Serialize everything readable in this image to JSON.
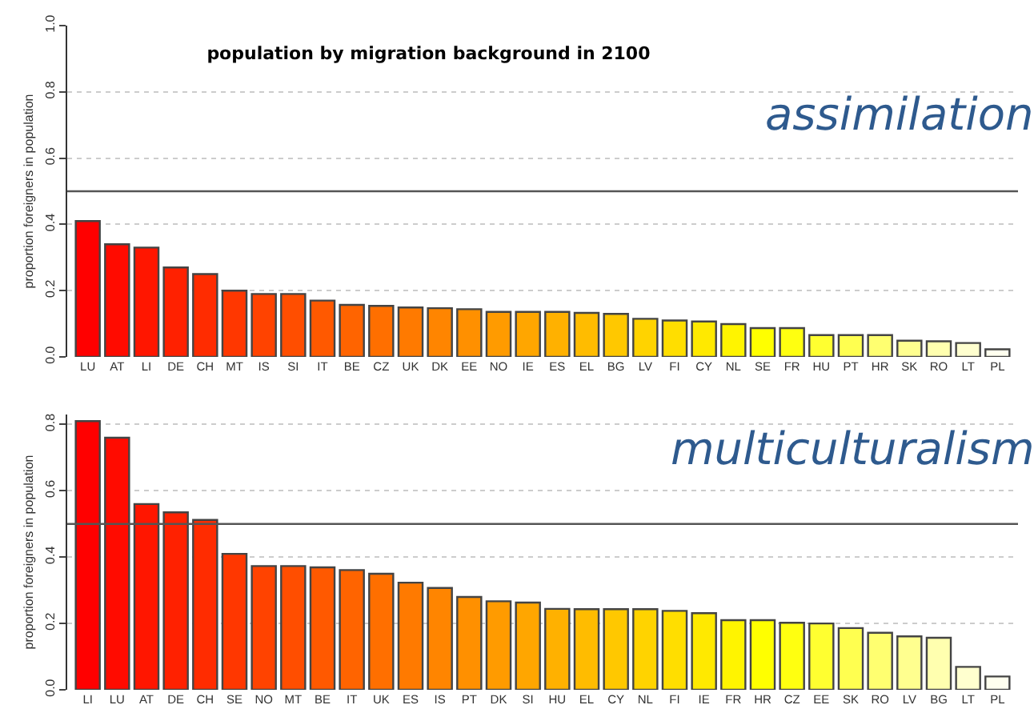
{
  "chart_data": [
    {
      "type": "bar",
      "title": "population by migration background in 2100",
      "ylabel": "proportion foreigners in population",
      "annotations": [
        "assimilation"
      ],
      "categories": [
        "LU",
        "AT",
        "LI",
        "DE",
        "CH",
        "MT",
        "IS",
        "SI",
        "IT",
        "BE",
        "CZ",
        "UK",
        "DK",
        "EE",
        "NO",
        "IE",
        "ES",
        "EL",
        "BG",
        "LV",
        "FI",
        "CY",
        "NL",
        "SE",
        "FR",
        "HU",
        "PT",
        "HR",
        "SK",
        "RO",
        "LT",
        "PL"
      ],
      "values": [
        0.41,
        0.34,
        0.33,
        0.27,
        0.25,
        0.2,
        0.19,
        0.19,
        0.17,
        0.157,
        0.154,
        0.149,
        0.147,
        0.144,
        0.136,
        0.136,
        0.136,
        0.133,
        0.13,
        0.115,
        0.11,
        0.107,
        0.099,
        0.087,
        0.087,
        0.066,
        0.066,
        0.066,
        0.049,
        0.047,
        0.042,
        0.023
      ],
      "colors": [
        "#ff0000",
        "#ff0b00",
        "#ff1600",
        "#ff2100",
        "#ff2c00",
        "#ff3700",
        "#ff4300",
        "#ff4e00",
        "#ff5900",
        "#ff6400",
        "#ff6f00",
        "#ff7a00",
        "#ff8500",
        "#ff9000",
        "#ff9b00",
        "#ffa600",
        "#ffb100",
        "#ffbc00",
        "#ffc800",
        "#ffd300",
        "#ffde00",
        "#ffe900",
        "#fff400",
        "#ffff00",
        "#ffff10",
        "#ffff30",
        "#ffff50",
        "#ffff70",
        "#ffff8f",
        "#ffffaf",
        "#ffffcf",
        "#ffffef"
      ],
      "ylim": [
        0,
        1
      ],
      "yticks": [
        {
          "value": 0,
          "label": "0.0"
        },
        {
          "value": 0.2,
          "label": "0.2"
        },
        {
          "value": 0.4,
          "label": "0.4"
        },
        {
          "value": 0.6,
          "label": "0.6"
        },
        {
          "value": 0.8,
          "label": "0.8"
        },
        {
          "value": 1,
          "label": "1.0"
        }
      ],
      "grid": "y",
      "ref_lines": [
        {
          "axis": "y",
          "value": 0.5,
          "color": "#555555"
        }
      ]
    },
    {
      "type": "bar",
      "ylabel": "proportion foreigners in population",
      "annotations": [
        "multiculturalism"
      ],
      "categories": [
        "LI",
        "LU",
        "AT",
        "DE",
        "CH",
        "SE",
        "NO",
        "MT",
        "BE",
        "IT",
        "UK",
        "ES",
        "IS",
        "PT",
        "DK",
        "SI",
        "HU",
        "EL",
        "CY",
        "NL",
        "FI",
        "IE",
        "FR",
        "HR",
        "CZ",
        "EE",
        "SK",
        "RO",
        "LV",
        "BG",
        "LT",
        "PL"
      ],
      "values": [
        0.81,
        0.76,
        0.56,
        0.535,
        0.512,
        0.41,
        0.373,
        0.373,
        0.369,
        0.361,
        0.35,
        0.323,
        0.307,
        0.28,
        0.267,
        0.263,
        0.244,
        0.243,
        0.243,
        0.243,
        0.238,
        0.231,
        0.21,
        0.21,
        0.202,
        0.2,
        0.186,
        0.172,
        0.161,
        0.157,
        0.069,
        0.04
      ],
      "colors": [
        "#ff0000",
        "#ff0b00",
        "#ff1600",
        "#ff2100",
        "#ff2c00",
        "#ff3700",
        "#ff4300",
        "#ff4e00",
        "#ff5900",
        "#ff6400",
        "#ff6f00",
        "#ff7a00",
        "#ff8500",
        "#ff9000",
        "#ff9b00",
        "#ffa600",
        "#ffb100",
        "#ffbc00",
        "#ffc800",
        "#ffd300",
        "#ffde00",
        "#ffe900",
        "#fff400",
        "#ffff00",
        "#ffff10",
        "#ffff30",
        "#ffff50",
        "#ffff70",
        "#ffff8f",
        "#ffffaf",
        "#ffffcf",
        "#ffffef"
      ],
      "ylim": [
        0,
        0.83
      ],
      "yticks": [
        {
          "value": 0,
          "label": "0.0"
        },
        {
          "value": 0.2,
          "label": "0.2"
        },
        {
          "value": 0.4,
          "label": "0.4"
        },
        {
          "value": 0.6,
          "label": "0.6"
        },
        {
          "value": 0.8,
          "label": "0.8"
        }
      ],
      "grid": "y",
      "ref_lines": [
        {
          "axis": "y",
          "value": 0.5,
          "color": "#555555"
        }
      ]
    }
  ]
}
